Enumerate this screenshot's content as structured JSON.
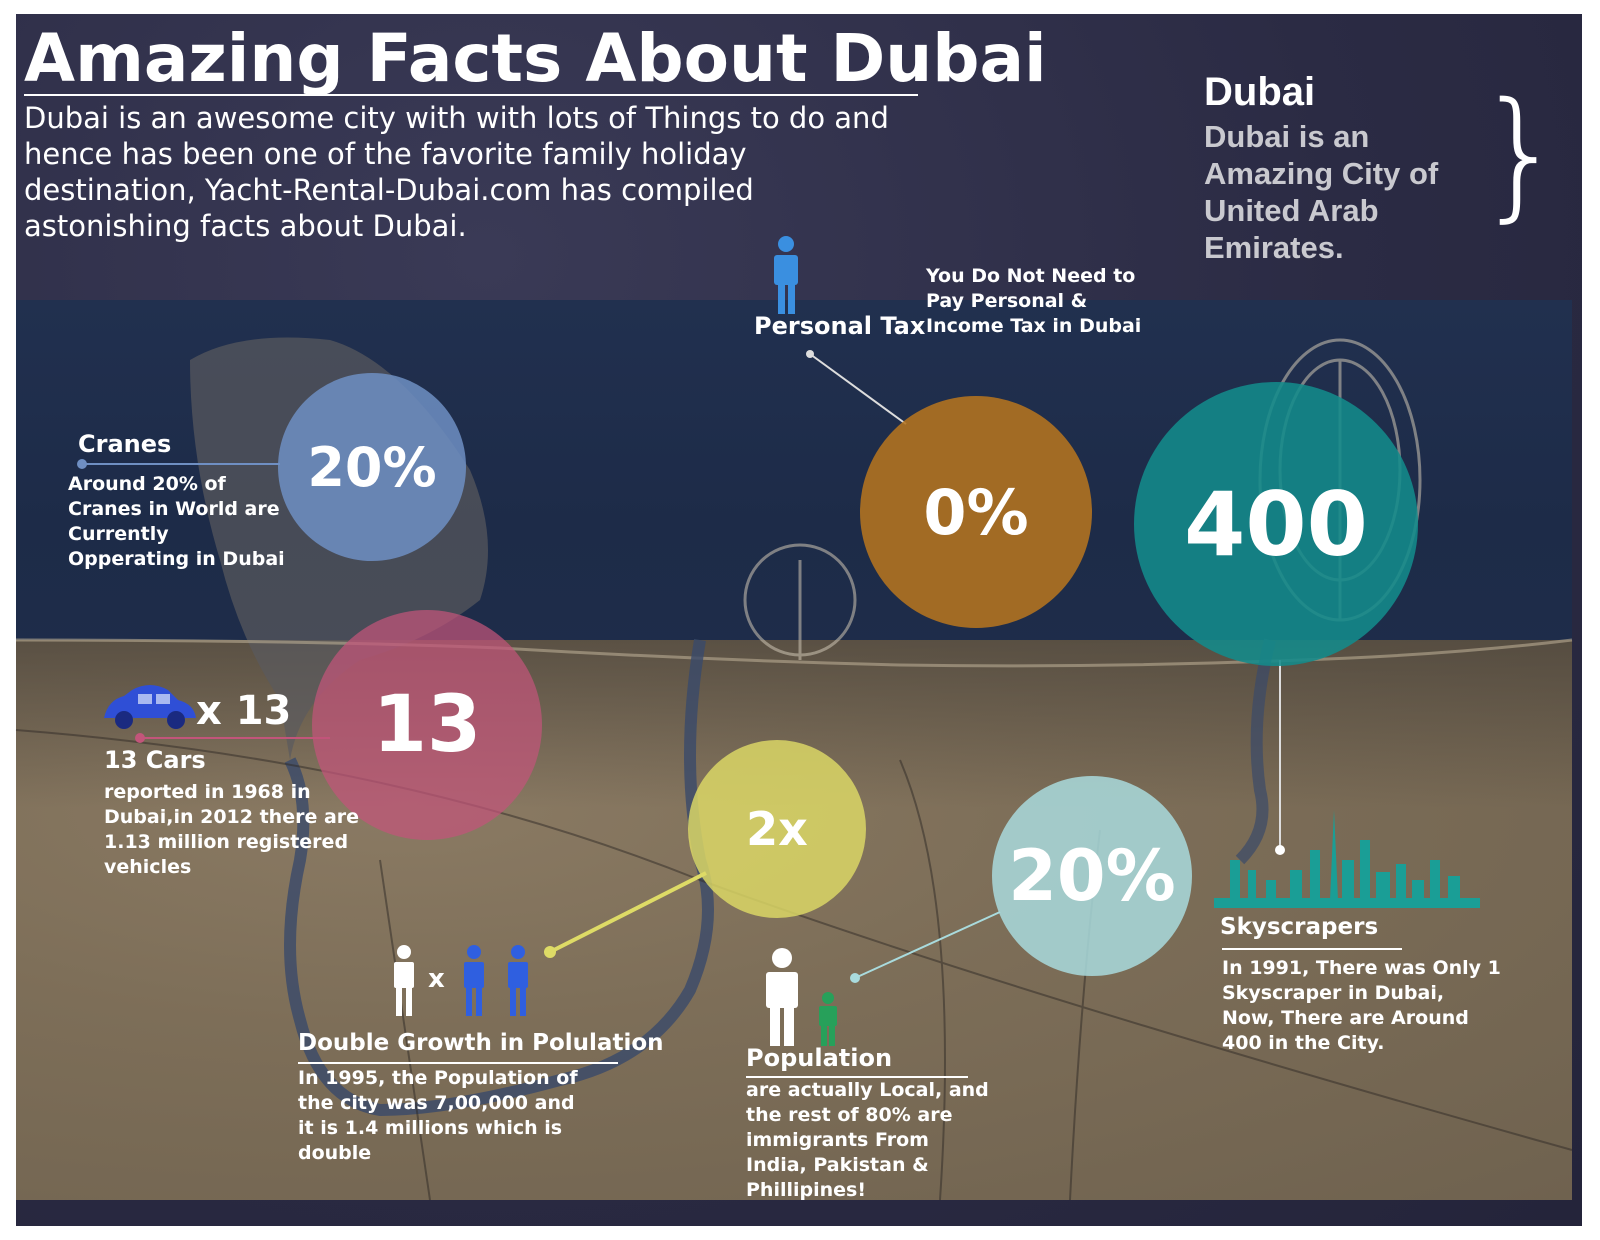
{
  "header": {
    "title": "Amazing Facts About Dubai",
    "intro": "Dubai is an awesome city with with lots of Things to do and hence has been one of the favorite family holiday destination, Yacht-Rental-Dubai.com has compiled astonishing facts about Dubai."
  },
  "side_note": {
    "title": "Dubai",
    "text": "Dubai is an Amazing City of United Arab Emirates."
  },
  "facts": {
    "cranes": {
      "value": "20%",
      "label": "Cranes",
      "desc": "Around 20% of Cranes in World are Currently Opperating in Dubai",
      "color": "#6f8fc3"
    },
    "personal_tax": {
      "value": "0%",
      "label": "Personal Tax",
      "desc": "You Do Not Need to Pay Personal & Income Tax in Dubai",
      "color": "#b5741f"
    },
    "skyscrapers": {
      "value": "400",
      "label": "Skyscrapers",
      "desc": "In 1991, There was Only 1 Skyscraper in Dubai, Now, There are Around 400 in the City.",
      "color": "#138b8b"
    },
    "cars": {
      "value": "13",
      "multiplier": "x 13",
      "label": "13 Cars",
      "desc": "reported in 1968 in Dubai,in 2012 there are 1.13 million registered vehicles",
      "color": "#c2557a"
    },
    "population_growth": {
      "value": "2x",
      "multiplier": "x",
      "label": "Double Growth in Polulation",
      "desc": "In 1995, the Population of the city was 7,00,000 and it is 1.4 millions which is double",
      "color": "#dedb66"
    },
    "population_local": {
      "value": "20%",
      "label": "Population",
      "desc": "are actually Local, and the rest of 80% are immigrants From India, Pakistan & Phillipines!",
      "color": "#a9dbdd"
    }
  },
  "icons": {
    "tax_person": "person-icon",
    "car": "car-icon",
    "people": "people-icon",
    "skyline": "skyline-icon"
  },
  "colors": {
    "background": "#2b2b44",
    "sea": "#1f2e4b",
    "land": "#7d6e58",
    "icon_blue": "#3a8fe0",
    "car_blue": "#2f4fd6",
    "person_green": "#27a05a",
    "skyline_teal": "#1a9e96"
  }
}
